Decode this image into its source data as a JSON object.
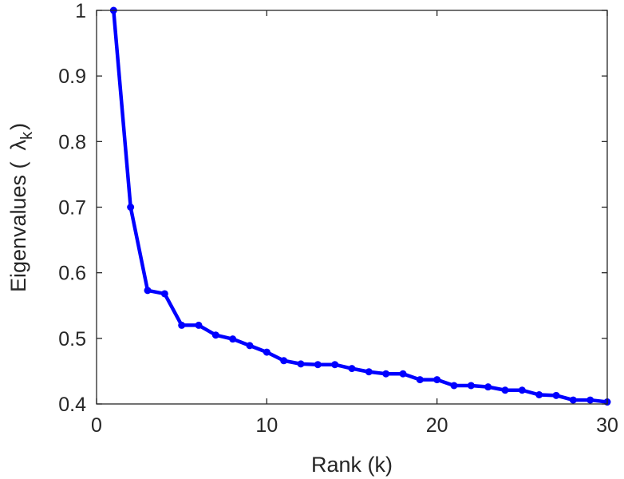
{
  "chart_data": {
    "type": "line",
    "xlabel": "Rank (k)",
    "ylabel_main": "Eigenvalues (",
    "ylabel_symbol": "λ",
    "ylabel_subscript": "k",
    "ylabel_close": ")",
    "xlim": [
      0,
      30
    ],
    "ylim": [
      0.4,
      1.0
    ],
    "xticks": [
      0,
      10,
      20,
      30
    ],
    "yticks": [
      0.4,
      0.5,
      0.6,
      0.7,
      0.8,
      0.9,
      1.0
    ],
    "xtick_labels": [
      "0",
      "10",
      "20",
      "30"
    ],
    "ytick_labels": [
      "0.4",
      "0.5",
      "0.6",
      "0.7",
      "0.8",
      "0.9",
      "1"
    ],
    "grid": false,
    "series": [
      {
        "color": "#0000ff",
        "x": [
          1,
          2,
          3,
          4,
          5,
          6,
          7,
          8,
          9,
          10,
          11,
          12,
          13,
          14,
          15,
          16,
          17,
          18,
          19,
          20,
          21,
          22,
          23,
          24,
          25,
          26,
          27,
          28,
          29,
          30
        ],
        "y": [
          1.0,
          0.7,
          0.573,
          0.568,
          0.52,
          0.52,
          0.505,
          0.499,
          0.489,
          0.479,
          0.466,
          0.461,
          0.46,
          0.46,
          0.454,
          0.449,
          0.446,
          0.446,
          0.437,
          0.437,
          0.428,
          0.428,
          0.426,
          0.421,
          0.421,
          0.414,
          0.413,
          0.406,
          0.406,
          0.403
        ]
      }
    ]
  }
}
